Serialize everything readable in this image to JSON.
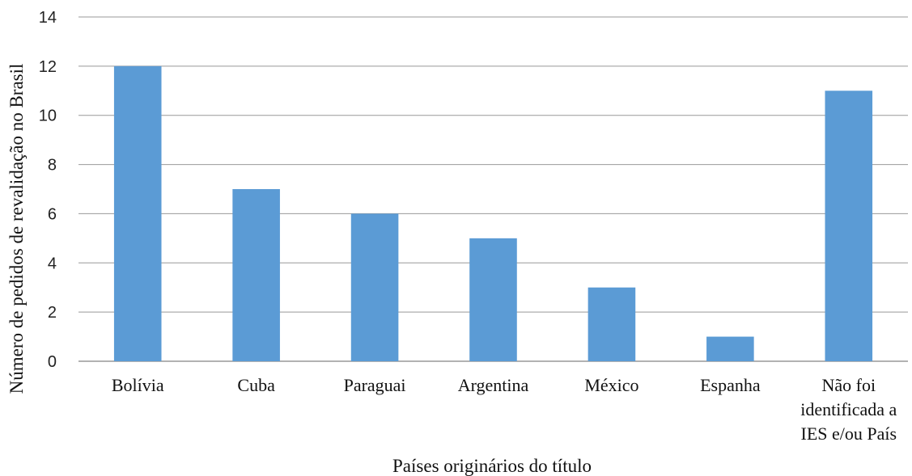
{
  "chart_data": {
    "type": "bar",
    "categories": [
      [
        "Bolívia"
      ],
      [
        "Cuba"
      ],
      [
        "Paraguai"
      ],
      [
        "Argentina"
      ],
      [
        "México"
      ],
      [
        "Espanha"
      ],
      [
        "Não foi",
        "identificada a",
        "IES e/ou País"
      ]
    ],
    "values": [
      12,
      7,
      6,
      5,
      3,
      1,
      11
    ],
    "xlabel": "Países originários do título",
    "ylabel": "Número de pedidos de revalidação no Brasil",
    "ylim": [
      0,
      14
    ],
    "yticks": [
      0,
      2,
      4,
      6,
      8,
      10,
      12,
      14
    ],
    "grid": true,
    "legend": "none",
    "bar_color": "#5b9bd5",
    "grid_color": "#999999"
  }
}
